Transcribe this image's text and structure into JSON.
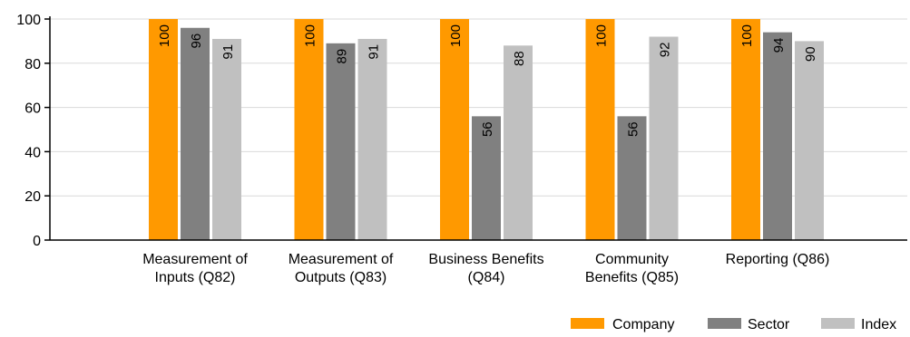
{
  "chart_data": {
    "type": "bar",
    "categories": [
      [
        "Measurement of",
        "Inputs (Q82)"
      ],
      [
        "Measurement of",
        "Outputs (Q83)"
      ],
      [
        "Business Benefits",
        "(Q84)"
      ],
      [
        "Community",
        "Benefits (Q85)"
      ],
      [
        "Reporting (Q86)"
      ]
    ],
    "series": [
      {
        "name": "Company",
        "color": "#FF9900",
        "values": [
          100,
          100,
          100,
          100,
          100
        ]
      },
      {
        "name": "Sector",
        "color": "#808080",
        "values": [
          96,
          89,
          56,
          56,
          94
        ]
      },
      {
        "name": "Index",
        "color": "#C0C0C0",
        "values": [
          91,
          91,
          88,
          92,
          90
        ]
      }
    ],
    "ylim": [
      0,
      100
    ],
    "yticks": [
      0,
      20,
      40,
      60,
      80,
      100
    ],
    "grid": true,
    "data_labels": "inside-top-rotated",
    "legend_position": "bottom-right",
    "title": "",
    "xlabel": "",
    "ylabel": ""
  }
}
